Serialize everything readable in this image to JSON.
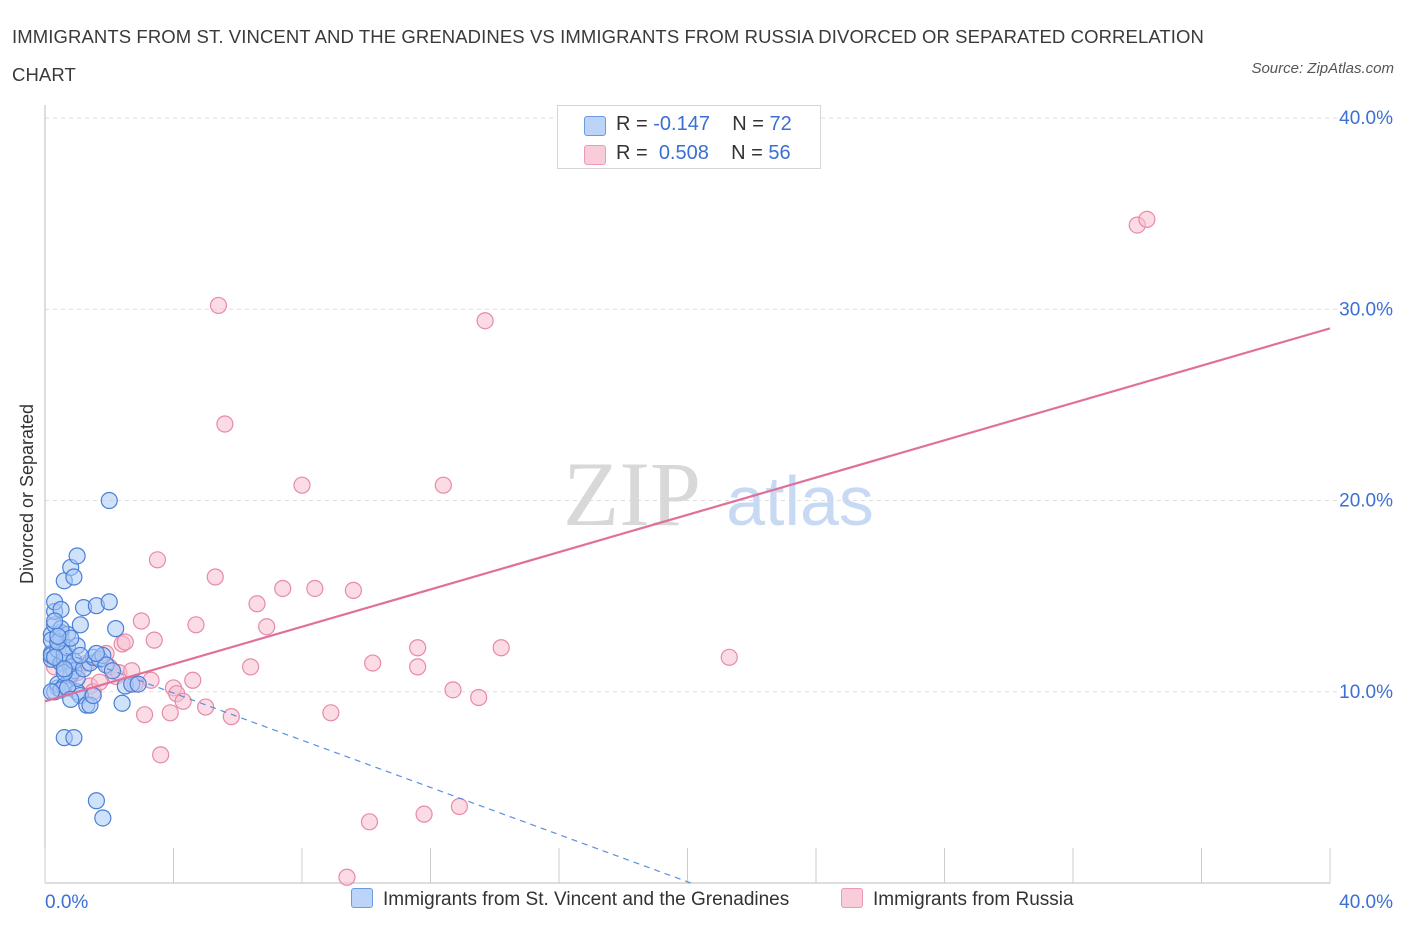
{
  "title": "IMMIGRANTS FROM ST. VINCENT AND THE GRENADINES VS IMMIGRANTS FROM RUSSIA DIVORCED OR SEPARATED CORRELATION CHART",
  "source": "Source: ZipAtlas.com",
  "watermark": {
    "zip": "ZIP",
    "atlas": "atlas"
  },
  "legend": {
    "r_label": "R =",
    "n_label": "N =",
    "series": [
      {
        "r": "-0.147",
        "n": "72"
      },
      {
        "r": "0.508",
        "n": "56"
      }
    ]
  },
  "colors": {
    "blue_fill": "#a9c8f5",
    "blue_stroke": "#4a7fd6",
    "pink_fill": "#f7c0d0",
    "pink_stroke": "#e889a8",
    "pink_line": "#e0709a",
    "blue_line": "#5a8fe0",
    "axis_label": "#3b6fd4",
    "grid": "#dddddd"
  },
  "chart_data": {
    "type": "scatter",
    "title": "IMMIGRANTS FROM ST. VINCENT AND THE GRENADINES VS IMMIGRANTS FROM RUSSIA DIVORCED OR SEPARATED CORRELATION CHART",
    "xlabel": "",
    "ylabel": "Divorced or Separated",
    "xlim": [
      0,
      40
    ],
    "ylim": [
      0,
      40
    ],
    "x_tick_labels": [
      "0.0%",
      "40.0%"
    ],
    "y_ticks": [
      10,
      20,
      30,
      40
    ],
    "y_tick_labels": [
      "10.0%",
      "20.0%",
      "30.0%",
      "40.0%"
    ],
    "grid": true,
    "legend_position": "bottom",
    "series": [
      {
        "name": "Immigrants from St. Vincent and the Grenadines",
        "color": "#a9c8f5",
        "trend": {
          "style": "dashed",
          "x": [
            0,
            20.1
          ],
          "y": [
            12.4,
            0
          ]
        },
        "points": [
          [
            0.2,
            12.0
          ],
          [
            0.2,
            11.7
          ],
          [
            0.2,
            13.0
          ],
          [
            0.2,
            12.7
          ],
          [
            0.3,
            13.5
          ],
          [
            0.3,
            14.2
          ],
          [
            0.3,
            14.7
          ],
          [
            0.2,
            11.9
          ],
          [
            0.4,
            10.2
          ],
          [
            0.3,
            10.0
          ],
          [
            0.4,
            10.4
          ],
          [
            0.4,
            12.2
          ],
          [
            0.5,
            13.1
          ],
          [
            0.5,
            14.3
          ],
          [
            0.5,
            11.5
          ],
          [
            0.5,
            12.8
          ],
          [
            0.6,
            11.7
          ],
          [
            0.6,
            10.3
          ],
          [
            0.6,
            15.8
          ],
          [
            0.5,
            10.1
          ],
          [
            0.7,
            13.0
          ],
          [
            0.7,
            11.9
          ],
          [
            0.7,
            12.3
          ],
          [
            0.6,
            12.0
          ],
          [
            0.8,
            16.5
          ],
          [
            0.8,
            11.3
          ],
          [
            0.8,
            10.9
          ],
          [
            0.9,
            16.0
          ],
          [
            0.9,
            11.1
          ],
          [
            1.0,
            12.4
          ],
          [
            1.0,
            10.0
          ],
          [
            1.0,
            10.7
          ],
          [
            0.6,
            7.6
          ],
          [
            0.9,
            7.6
          ],
          [
            0.2,
            10.0
          ],
          [
            0.3,
            11.8
          ],
          [
            0.4,
            12.6
          ],
          [
            0.5,
            13.3
          ],
          [
            0.6,
            11.0
          ],
          [
            0.7,
            10.2
          ],
          [
            0.8,
            12.8
          ],
          [
            0.9,
            11.6
          ],
          [
            1.0,
            17.1
          ],
          [
            1.1,
            9.8
          ],
          [
            1.2,
            14.4
          ],
          [
            1.1,
            13.5
          ],
          [
            1.2,
            11.2
          ],
          [
            1.3,
            9.3
          ],
          [
            1.4,
            9.3
          ],
          [
            1.4,
            11.5
          ],
          [
            1.5,
            9.8
          ],
          [
            1.5,
            11.8
          ],
          [
            1.6,
            14.5
          ],
          [
            1.7,
            11.7
          ],
          [
            1.8,
            11.9
          ],
          [
            1.9,
            11.4
          ],
          [
            1.6,
            4.3
          ],
          [
            1.8,
            3.4
          ],
          [
            2.0,
            14.7
          ],
          [
            2.1,
            11.1
          ],
          [
            2.2,
            13.3
          ],
          [
            2.5,
            10.3
          ],
          [
            2.4,
            9.4
          ],
          [
            2.7,
            10.4
          ],
          [
            2.9,
            10.4
          ],
          [
            1.6,
            12.0
          ],
          [
            0.3,
            13.7
          ],
          [
            0.4,
            12.9
          ],
          [
            0.6,
            11.2
          ],
          [
            1.1,
            11.9
          ],
          [
            2.0,
            20.0
          ],
          [
            0.8,
            9.6
          ]
        ]
      },
      {
        "name": "Immigrants from Russia",
        "color": "#f7c0d0",
        "trend": {
          "style": "solid",
          "x": [
            0,
            40
          ],
          "y": [
            9.5,
            29.0
          ]
        },
        "points": [
          [
            0.3,
            11.3
          ],
          [
            0.6,
            11.5
          ],
          [
            0.8,
            10.8
          ],
          [
            1.0,
            11.0
          ],
          [
            1.3,
            11.5
          ],
          [
            1.4,
            10.3
          ],
          [
            1.5,
            10.0
          ],
          [
            1.7,
            10.5
          ],
          [
            1.9,
            12.0
          ],
          [
            2.0,
            11.3
          ],
          [
            2.2,
            10.8
          ],
          [
            2.3,
            11.0
          ],
          [
            2.4,
            12.5
          ],
          [
            2.5,
            12.6
          ],
          [
            2.7,
            11.1
          ],
          [
            2.8,
            10.4
          ],
          [
            3.0,
            13.7
          ],
          [
            3.1,
            8.8
          ],
          [
            3.3,
            10.6
          ],
          [
            3.4,
            12.7
          ],
          [
            3.5,
            16.9
          ],
          [
            3.6,
            6.7
          ],
          [
            3.9,
            8.9
          ],
          [
            4.0,
            10.2
          ],
          [
            4.1,
            9.9
          ],
          [
            4.3,
            9.5
          ],
          [
            4.6,
            10.6
          ],
          [
            4.7,
            13.5
          ],
          [
            5.0,
            9.2
          ],
          [
            5.3,
            16.0
          ],
          [
            5.4,
            30.2
          ],
          [
            5.6,
            24.0
          ],
          [
            5.8,
            8.7
          ],
          [
            6.4,
            11.3
          ],
          [
            6.6,
            14.6
          ],
          [
            6.9,
            13.4
          ],
          [
            7.4,
            15.4
          ],
          [
            8.0,
            20.8
          ],
          [
            8.4,
            15.4
          ],
          [
            8.9,
            8.9
          ],
          [
            9.4,
            0.3
          ],
          [
            9.6,
            15.3
          ],
          [
            10.1,
            3.2
          ],
          [
            10.2,
            11.5
          ],
          [
            11.6,
            12.3
          ],
          [
            11.6,
            11.3
          ],
          [
            11.8,
            3.6
          ],
          [
            12.4,
            20.8
          ],
          [
            12.7,
            10.1
          ],
          [
            12.9,
            4.0
          ],
          [
            13.5,
            9.7
          ],
          [
            13.7,
            29.4
          ],
          [
            14.2,
            12.3
          ],
          [
            21.3,
            11.8
          ],
          [
            34.0,
            34.4
          ],
          [
            34.3,
            34.7
          ]
        ]
      }
    ]
  }
}
